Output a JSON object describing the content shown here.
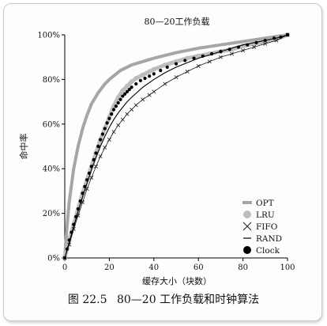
{
  "figure": {
    "caption_label": "图 22.5",
    "caption_text": "80—20 工作负载和时钟算法"
  },
  "chart_data": {
    "type": "line",
    "title": "80—20工作负载",
    "xlabel": "缓存大小（块数）",
    "ylabel": "命中率",
    "xlim": [
      0,
      100
    ],
    "ylim": [
      0,
      100
    ],
    "x_ticks": [
      "0",
      "20",
      "40",
      "60",
      "80",
      "100"
    ],
    "y_ticks": [
      "0%",
      "20%",
      "40%",
      "60%",
      "80%",
      "100%"
    ],
    "grid": false,
    "legend_position": "bottom-right",
    "series": [
      {
        "name": "OPT",
        "marker": "thick-line",
        "color": "#a6a6a6",
        "x": [
          0,
          1,
          2,
          4,
          6,
          8,
          10,
          12,
          15,
          18,
          20,
          25,
          30,
          35,
          40,
          50,
          60,
          70,
          80,
          90,
          100
        ],
        "y": [
          0,
          14,
          25,
          40,
          50,
          58,
          64,
          69,
          74,
          78,
          80,
          84,
          86.5,
          88,
          89.5,
          92,
          94,
          95.5,
          97,
          98.5,
          100
        ]
      },
      {
        "name": "LRU",
        "marker": "gray-dot",
        "color": "#bdbdbd",
        "x": [
          0,
          1,
          2,
          4,
          6,
          8,
          10,
          12,
          14,
          16,
          18,
          20,
          22,
          24,
          26,
          28,
          30,
          32,
          35,
          38,
          40,
          45,
          50,
          55,
          60,
          65,
          70,
          75,
          80,
          85,
          90,
          95,
          100
        ],
        "y": [
          0,
          4,
          8,
          15,
          22,
          29,
          35,
          41,
          47,
          53,
          58,
          63,
          68,
          72,
          75,
          77,
          79,
          80.5,
          82,
          83.5,
          84.5,
          86.5,
          88,
          89.5,
          90.5,
          91.5,
          92.5,
          93.5,
          95,
          96,
          97,
          98,
          100
        ]
      },
      {
        "name": "FIFO",
        "marker": "x",
        "color": "#1a1a1a",
        "x": [
          0,
          2,
          4,
          6,
          8,
          10,
          12,
          14,
          16,
          18,
          20,
          22,
          24,
          26,
          28,
          30,
          32,
          35,
          38,
          40,
          45,
          50,
          55,
          60,
          65,
          70,
          75,
          80,
          85,
          90,
          95,
          100
        ],
        "y": [
          0,
          6,
          13,
          19,
          25,
          31,
          36,
          41,
          45.5,
          49.5,
          53,
          56.5,
          59.5,
          62,
          64.5,
          66.5,
          68.5,
          71,
          73,
          74.5,
          78,
          81,
          83.5,
          86,
          88,
          90,
          91.5,
          93,
          94.5,
          96,
          97.5,
          100
        ]
      },
      {
        "name": "RAND",
        "marker": "thin-line",
        "color": "#000000",
        "x": [
          0,
          2,
          4,
          6,
          8,
          10,
          12,
          14,
          16,
          18,
          20,
          22,
          24,
          26,
          28,
          30,
          35,
          40,
          45,
          50,
          55,
          60,
          65,
          70,
          75,
          80,
          85,
          90,
          95,
          100
        ],
        "y": [
          0,
          7,
          14,
          21,
          27.5,
          33.5,
          39.5,
          45,
          50,
          54.5,
          58.5,
          62,
          65,
          67.5,
          70,
          72,
          76.5,
          80,
          83,
          85.5,
          87.5,
          89.5,
          91,
          92.5,
          94,
          95.5,
          96.5,
          97.5,
          98.5,
          100
        ]
      },
      {
        "name": "Clock",
        "marker": "black-dot",
        "color": "#000000",
        "x": [
          0,
          1,
          2,
          3,
          4,
          5,
          6,
          7,
          8,
          9,
          10,
          11,
          12,
          13,
          14,
          15,
          16,
          17,
          18,
          19,
          20,
          21,
          22,
          23,
          24,
          25,
          26,
          27,
          28,
          29,
          30,
          32,
          34,
          36,
          38,
          40,
          43,
          46,
          50,
          54,
          58,
          62,
          66,
          70,
          74,
          78,
          82,
          86,
          90,
          94,
          97,
          100
        ],
        "y": [
          0,
          4,
          8,
          11.5,
          15,
          18.5,
          22,
          25.5,
          29,
          32,
          35,
          38,
          41,
          44,
          47,
          50,
          53,
          55.5,
          58,
          60.5,
          62.5,
          64.5,
          66.5,
          68,
          69.5,
          71,
          72.5,
          73.5,
          74.5,
          75.5,
          76.5,
          78,
          79.5,
          80.5,
          81.5,
          82.5,
          84,
          85.5,
          87,
          88.5,
          89.5,
          90.5,
          91.5,
          92.5,
          93.5,
          94.5,
          95.5,
          96.5,
          97.5,
          98.5,
          99,
          100
        ]
      }
    ]
  }
}
